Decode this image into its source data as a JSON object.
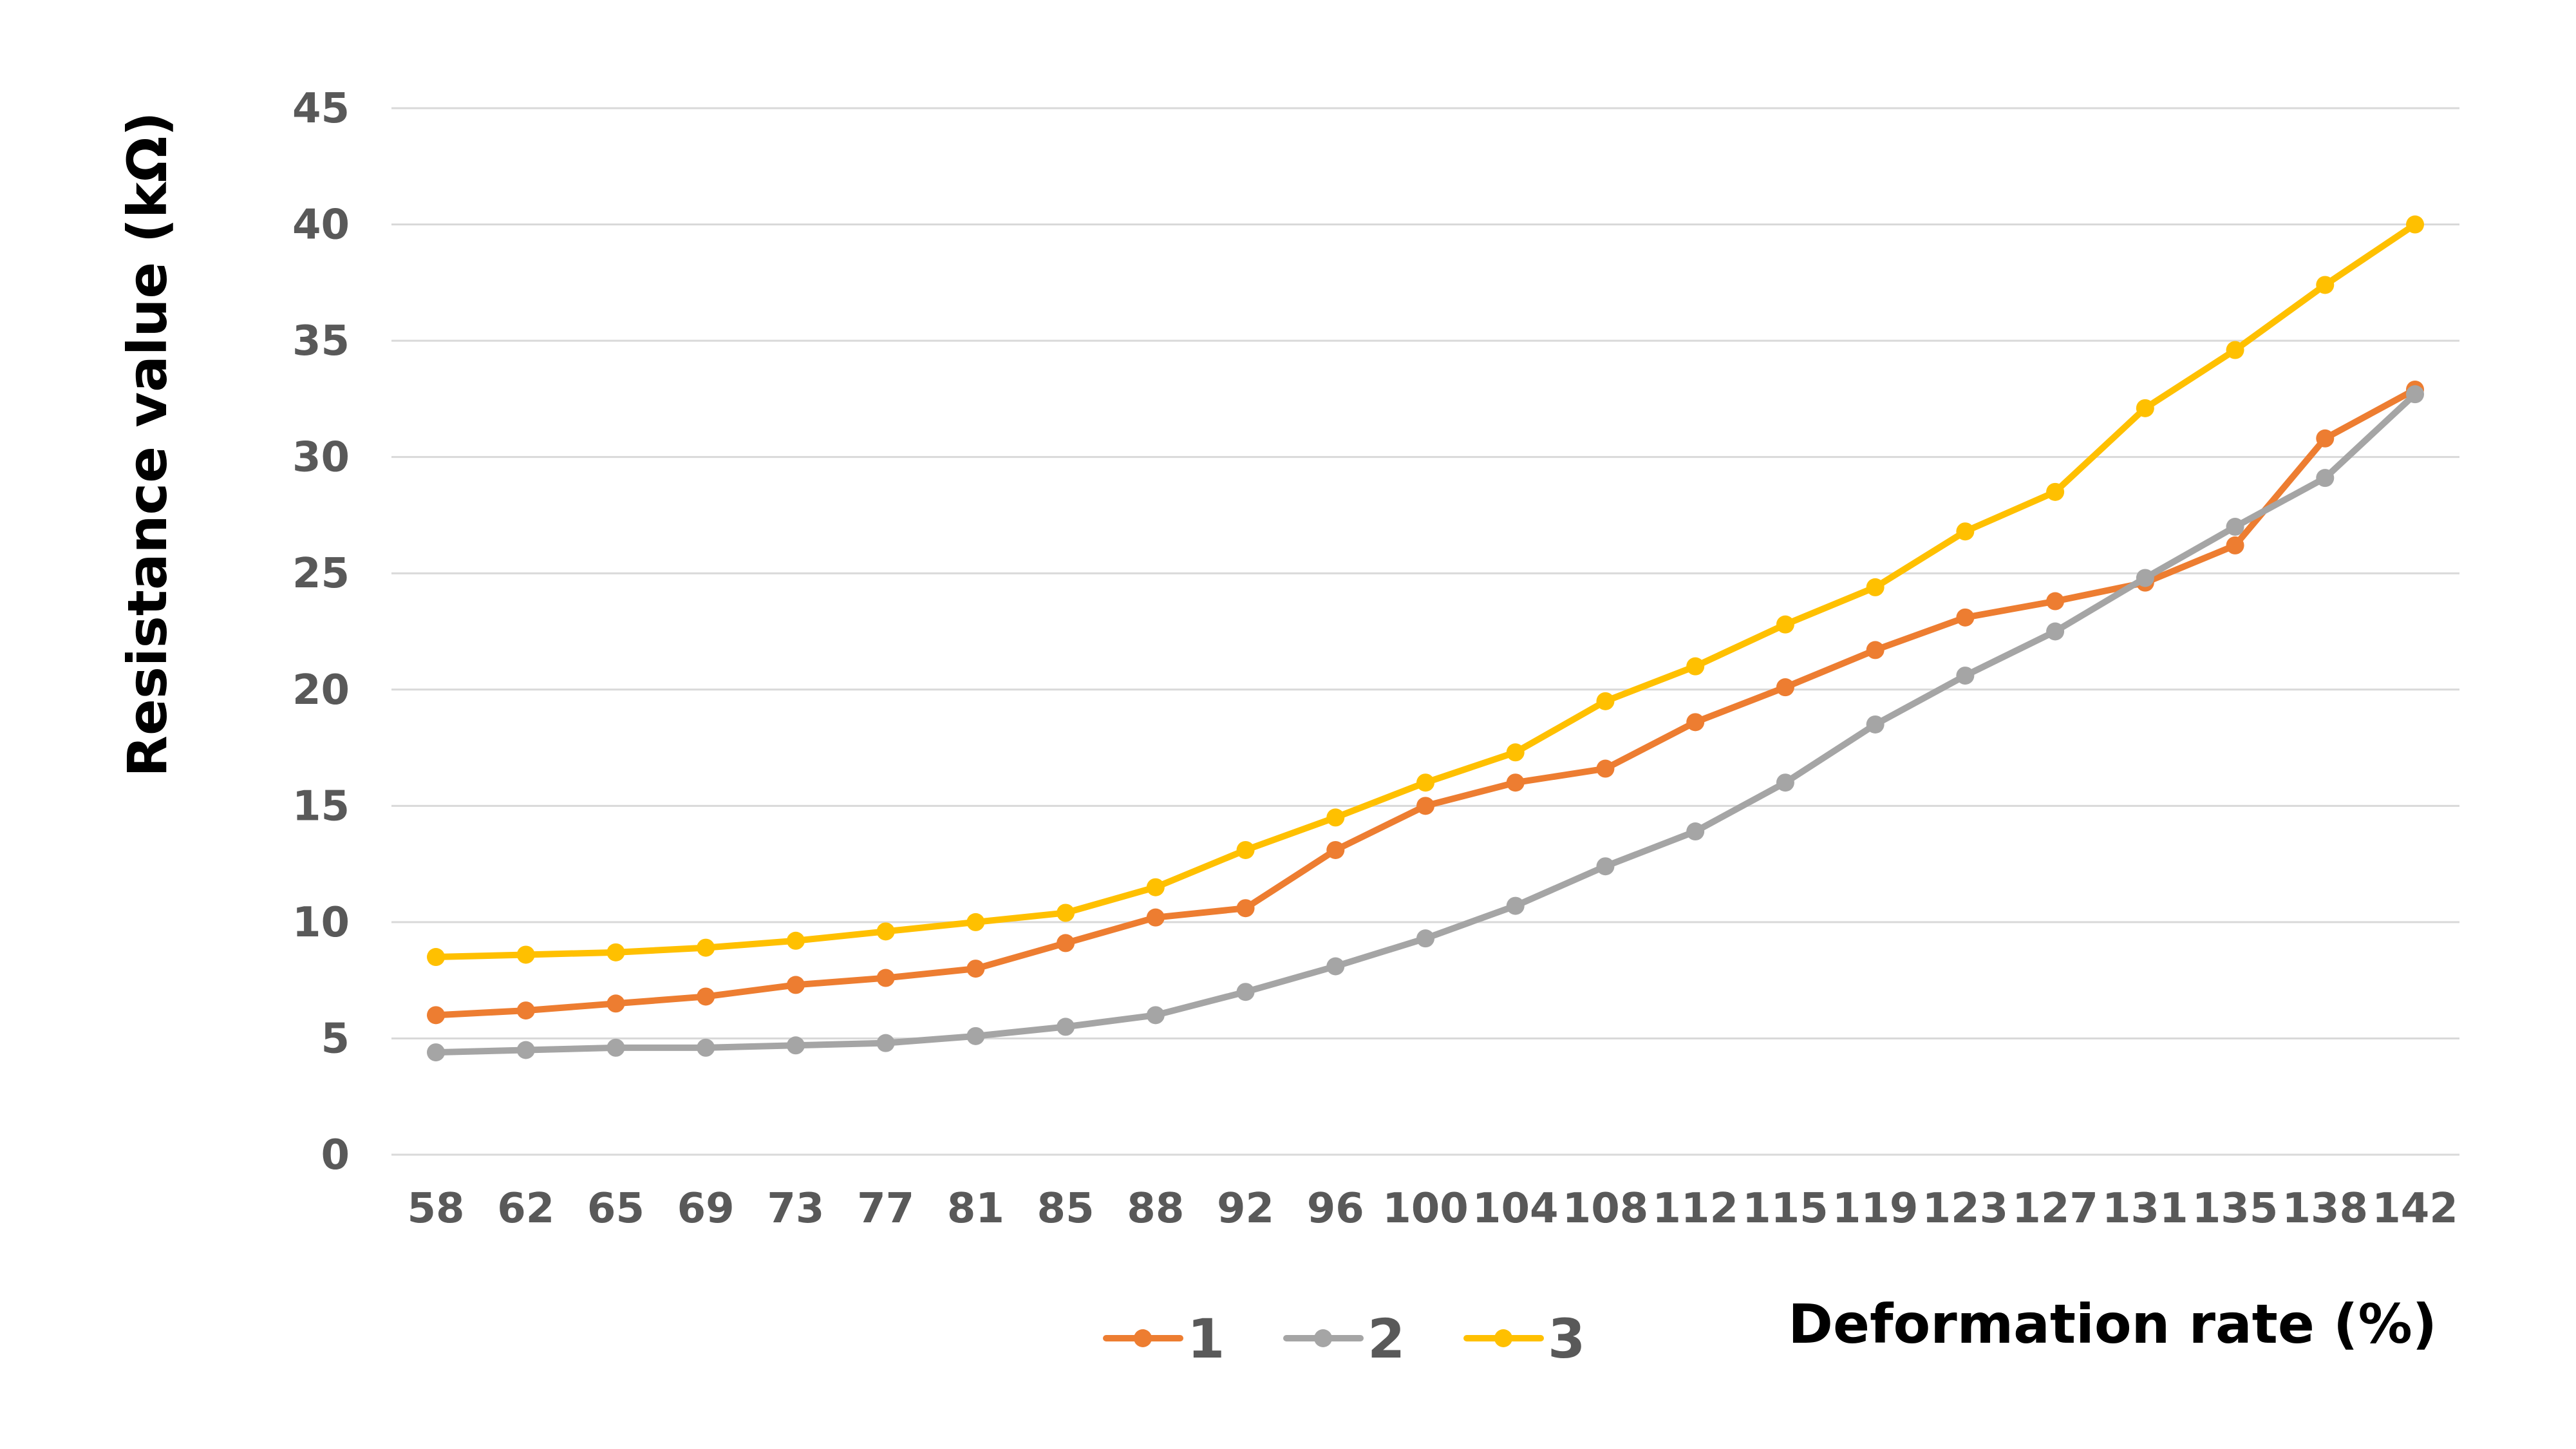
{
  "chart_data": {
    "type": "line",
    "xlabel": "Deformation rate (%)",
    "ylabel": "Resistance value (kΩ)",
    "ylim": [
      0,
      45
    ],
    "yticks": [
      "0",
      "5",
      "10",
      "15",
      "20",
      "25",
      "30",
      "35",
      "40",
      "45"
    ],
    "categories": [
      "58",
      "62",
      "65",
      "69",
      "73",
      "77",
      "81",
      "85",
      "88",
      "92",
      "96",
      "100",
      "104",
      "108",
      "112",
      "115",
      "119",
      "123",
      "127",
      "131",
      "135",
      "138",
      "142"
    ],
    "grid": true,
    "legend_position": "bottom",
    "series": [
      {
        "name": "1",
        "color": "#ED7D31",
        "values": [
          6.0,
          6.2,
          6.5,
          6.8,
          7.3,
          7.6,
          8.0,
          9.1,
          10.2,
          10.6,
          13.1,
          15.0,
          16.0,
          16.6,
          18.6,
          20.1,
          21.7,
          23.1,
          23.8,
          24.6,
          26.2,
          30.8,
          32.9
        ]
      },
      {
        "name": "2",
        "color": "#A5A5A5",
        "values": [
          4.4,
          4.5,
          4.6,
          4.6,
          4.7,
          4.8,
          5.1,
          5.5,
          6.0,
          7.0,
          8.1,
          9.3,
          10.7,
          12.4,
          13.9,
          16.0,
          18.5,
          20.6,
          22.5,
          24.8,
          27.0,
          29.1,
          32.7
        ]
      },
      {
        "name": "3",
        "color": "#FFC000",
        "values": [
          8.5,
          8.6,
          8.7,
          8.9,
          9.2,
          9.6,
          10.0,
          10.4,
          11.5,
          13.1,
          14.5,
          16.0,
          17.3,
          19.5,
          21.0,
          22.8,
          24.4,
          26.8,
          28.5,
          32.1,
          34.6,
          37.4,
          40.0
        ]
      }
    ]
  }
}
